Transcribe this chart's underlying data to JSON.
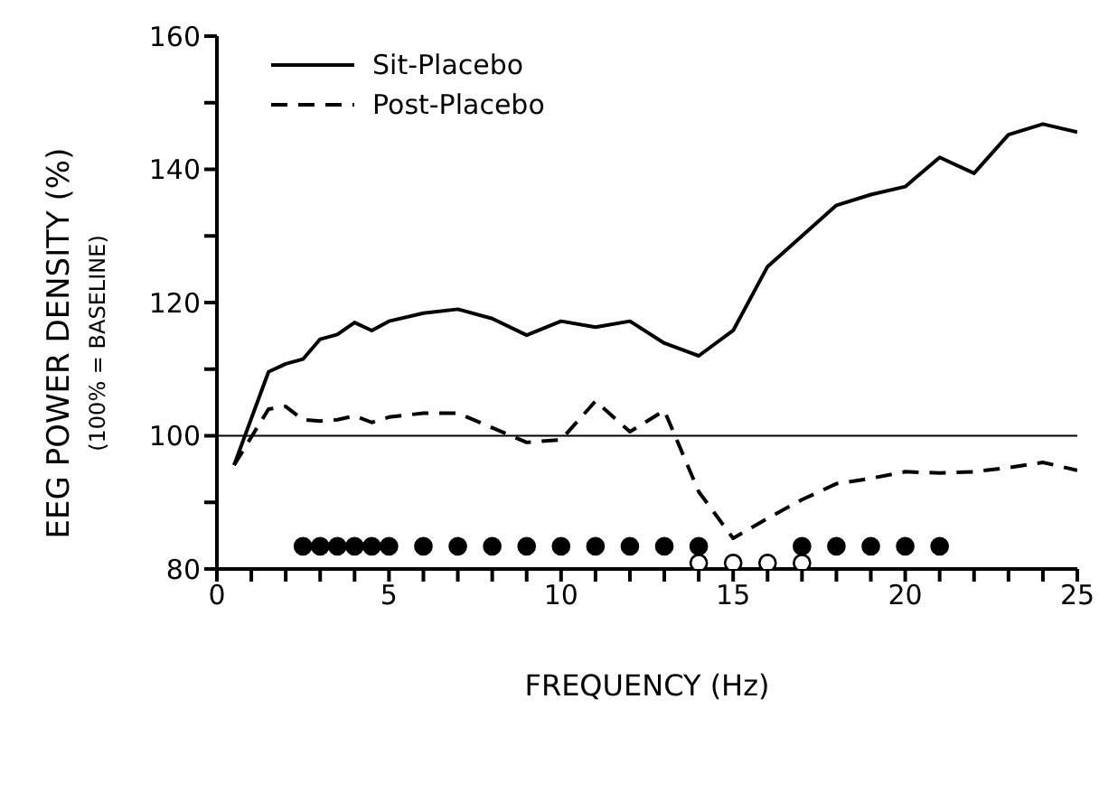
{
  "chart_data": {
    "type": "line",
    "xlabel": "FREQUENCY (Hz)",
    "ylabel": "EEG POWER DENSITY (%)",
    "subtitle": "(100% = BASELINE)",
    "xlim": [
      0,
      25
    ],
    "xticks": [
      0,
      {
        "value": 1,
        "label": null
      },
      {
        "value": 2,
        "label": null
      },
      {
        "value": 3,
        "label": null
      },
      {
        "value": 4,
        "label": null
      },
      5,
      {
        "value": 6,
        "label": null
      },
      {
        "value": 7,
        "label": null
      },
      {
        "value": 8,
        "label": null
      },
      {
        "value": 9,
        "label": null
      },
      10,
      {
        "value": 11,
        "label": null
      },
      {
        "value": 12,
        "label": null
      },
      {
        "value": 13,
        "label": null
      },
      {
        "value": 14,
        "label": null
      },
      15,
      {
        "value": 16,
        "label": null
      },
      {
        "value": 17,
        "label": null
      },
      {
        "value": 18,
        "label": null
      },
      {
        "value": 19,
        "label": null
      },
      20,
      {
        "value": 21,
        "label": null
      },
      {
        "value": 22,
        "label": null
      },
      {
        "value": 23,
        "label": null
      },
      {
        "value": 24,
        "label": null
      },
      25
    ],
    "ylim": [
      80,
      160
    ],
    "yticks": [
      80,
      {
        "value": 90,
        "label": null
      },
      100,
      {
        "value": 110,
        "label": null
      },
      120,
      {
        "value": 130,
        "label": null
      },
      140,
      {
        "value": 150,
        "label": null
      },
      160
    ],
    "grid": false,
    "legend": "top left",
    "marker": "none",
    "ref_lines": [
      {
        "axis": "y",
        "value": 100,
        "color": "#000000",
        "line_style": "solid"
      }
    ],
    "series": [
      {
        "name": "Sit-Placebo",
        "color": "#000000",
        "line_style": "solid",
        "x": [
          0.5,
          1.5,
          2,
          2.5,
          3,
          3.5,
          4,
          4.5,
          5,
          6,
          7,
          8,
          9,
          10,
          11,
          12,
          13,
          14,
          15,
          16,
          17,
          18,
          19,
          20,
          21,
          22,
          23,
          24,
          25
        ],
        "values": [
          95.6,
          109.6,
          110.8,
          111.5,
          114.5,
          115.2,
          117,
          115.8,
          117.2,
          118.4,
          119,
          117.6,
          115.1,
          117.2,
          116.3,
          117.2,
          113.9,
          112,
          115.8,
          125.4,
          130,
          134.6,
          136.2,
          137.4,
          141.8,
          139.4,
          145.2,
          146.8,
          145.6
        ]
      },
      {
        "name": "Post-Placebo",
        "color": "#000000",
        "line_style": "dashed",
        "x": [
          0.5,
          1.5,
          2,
          2.5,
          3,
          3.5,
          4,
          4.5,
          5,
          6,
          7,
          8,
          9,
          10,
          11,
          12,
          13,
          14,
          15,
          16,
          17,
          18,
          19,
          20,
          21,
          22,
          23,
          24,
          25
        ],
        "values": [
          95.6,
          104,
          104.4,
          102.4,
          102.2,
          102.4,
          103,
          102,
          102.8,
          103.4,
          103.4,
          101.2,
          99,
          99.4,
          105.2,
          100.6,
          103.8,
          91.6,
          84.6,
          87.6,
          90.4,
          92.8,
          93.6,
          94.6,
          94.4,
          94.6,
          95.2,
          96,
          94.8
        ]
      },
      {
        "type": "scatter",
        "marker": "circle",
        "color": "#000000",
        "x": [
          2.5,
          3,
          3.5,
          4,
          4.5,
          5,
          6,
          7,
          8,
          9,
          10,
          11,
          12,
          13,
          14,
          17,
          18,
          19,
          20,
          21
        ],
        "values": [
          83.4,
          83.4,
          83.4,
          83.4,
          83.4,
          83.4,
          83.4,
          83.4,
          83.4,
          83.4,
          83.4,
          83.4,
          83.4,
          83.4,
          83.4,
          83.4,
          83.4,
          83.4,
          83.4,
          83.4
        ]
      },
      {
        "type": "scatter",
        "marker": "circle",
        "color": "#ffffff",
        "x": [
          14,
          15,
          16,
          17
        ],
        "values": [
          80.9,
          80.9,
          80.9,
          80.9
        ]
      }
    ]
  }
}
